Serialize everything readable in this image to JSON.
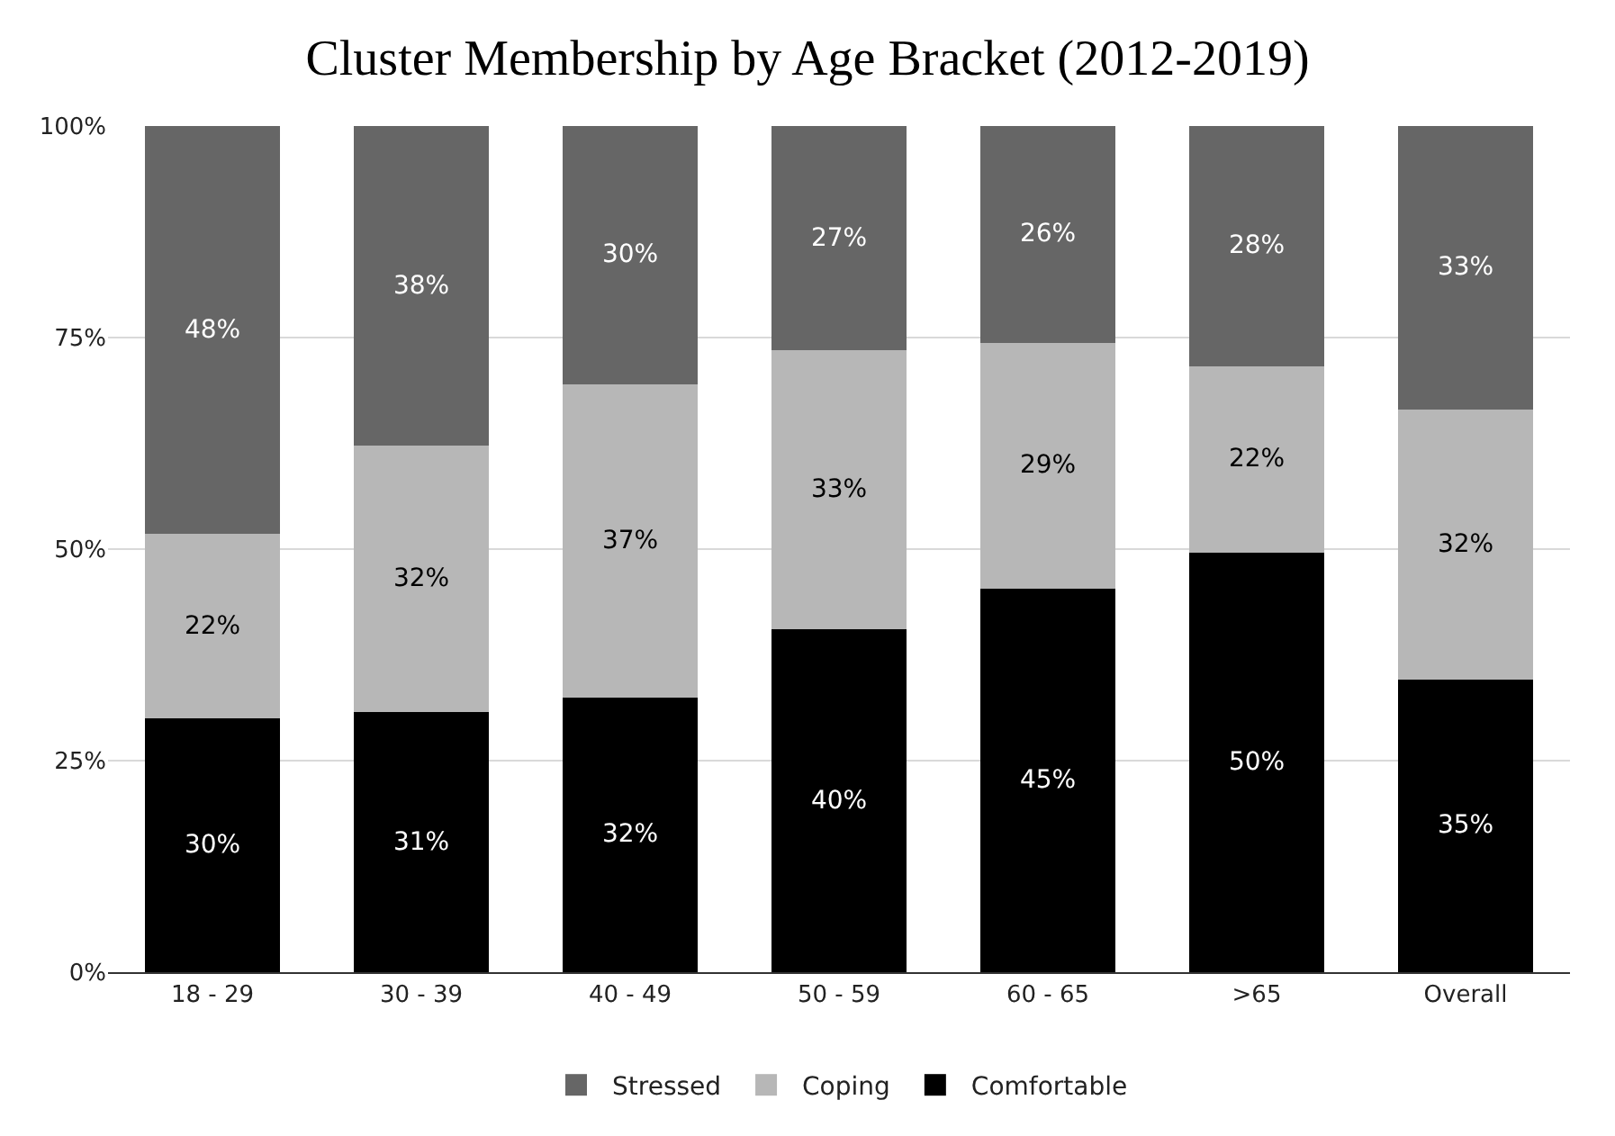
{
  "chart_data": {
    "type": "bar",
    "title": "Cluster Membership by Age Bracket (2012-2019)",
    "categories": [
      "18 - 29",
      "30 - 39",
      "40 - 49",
      "50 - 59",
      "60 - 65",
      ">65",
      "Overall"
    ],
    "stacked": true,
    "series": [
      {
        "name": "Comfortable",
        "color": "#000000",
        "values": [
          30.0,
          30.7,
          32.5,
          40.5,
          45.3,
          49.6,
          34.6
        ],
        "value_labels": [
          "30%",
          "31%",
          "32%",
          "40%",
          "45%",
          "50%",
          "35%"
        ]
      },
      {
        "name": "Coping",
        "color": "#b7b7b7",
        "values": [
          21.8,
          31.5,
          37.0,
          33.0,
          29.1,
          22.0,
          31.9
        ],
        "value_labels": [
          "22%",
          "32%",
          "37%",
          "33%",
          "29%",
          "22%",
          "32%"
        ]
      },
      {
        "name": "Stressed",
        "color": "#666666",
        "values": [
          48.2,
          37.8,
          30.5,
          26.5,
          25.6,
          28.4,
          33.5
        ],
        "value_labels": [
          "48%",
          "38%",
          "30%",
          "27%",
          "26%",
          "28%",
          "33%"
        ]
      }
    ],
    "ylim": [
      0,
      100
    ],
    "yticks": [
      {
        "value": 0,
        "label": "0%"
      },
      {
        "value": 25,
        "label": "25%"
      },
      {
        "value": 50,
        "label": "50%"
      },
      {
        "value": 75,
        "label": "75%"
      },
      {
        "value": 100,
        "label": "100%"
      }
    ],
    "grid": "y",
    "legend": "bottom"
  }
}
